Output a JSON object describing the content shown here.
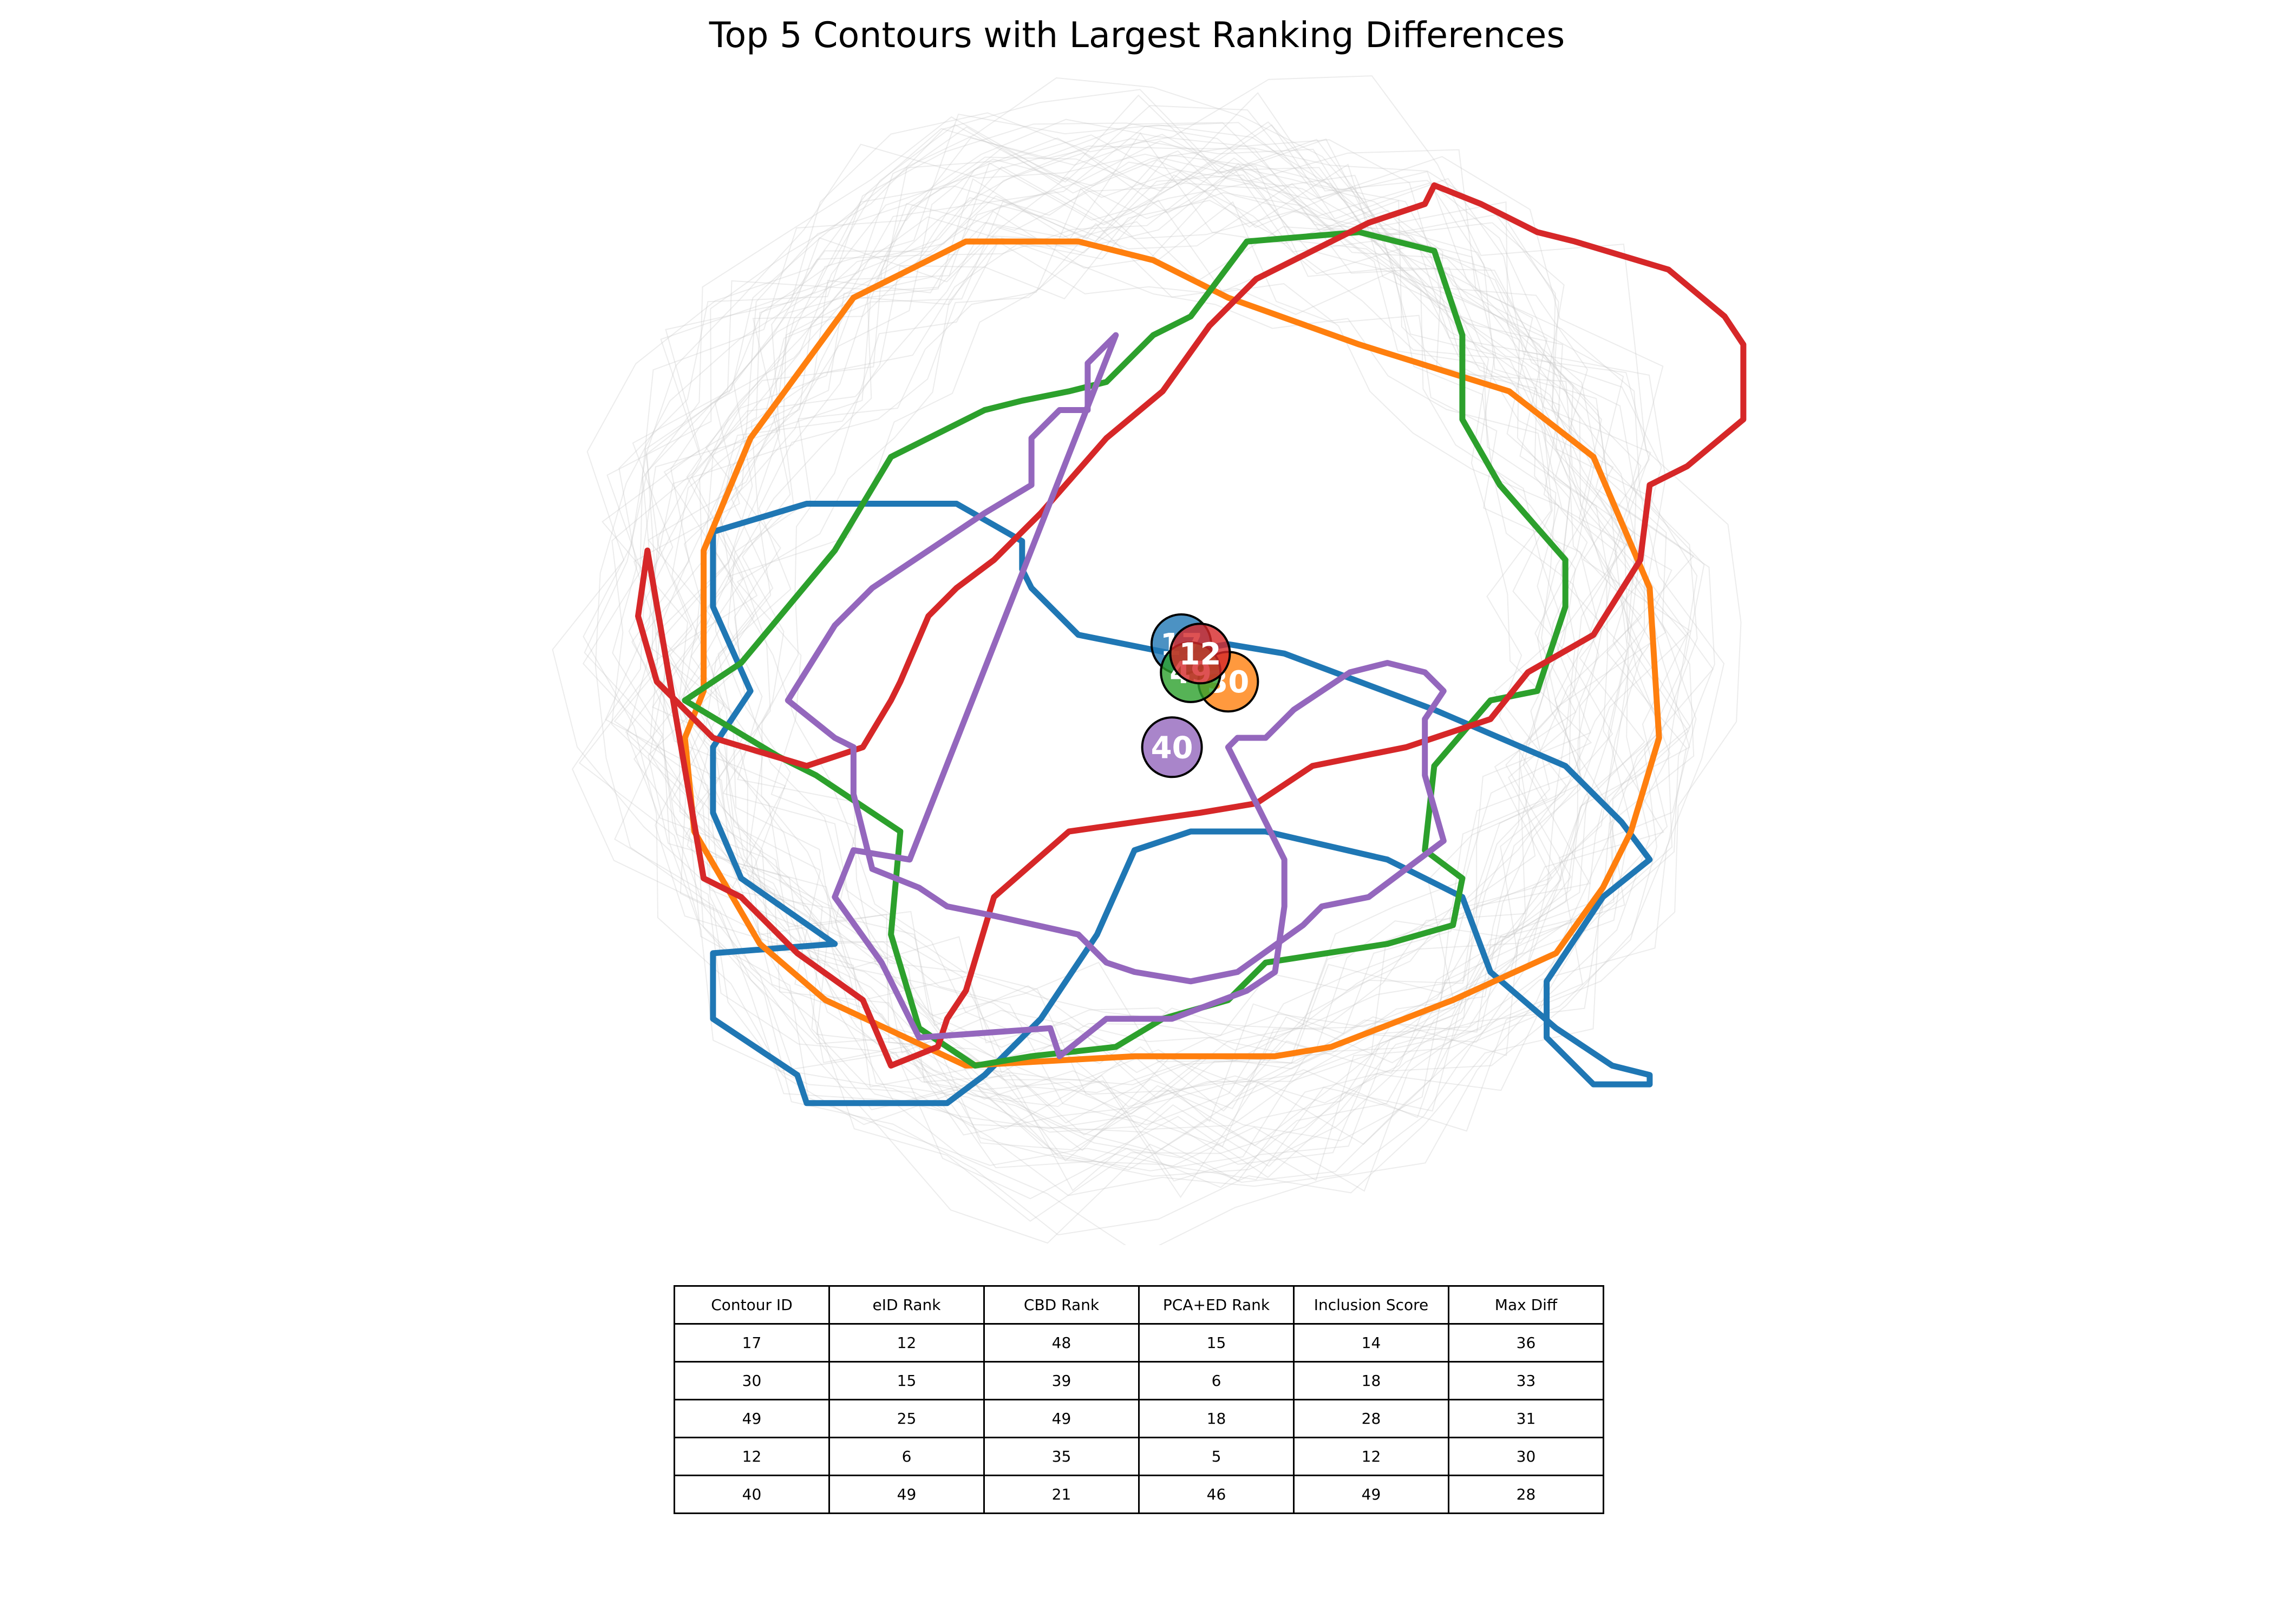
{
  "chart_data": {
    "type": "line",
    "title": "Top 5 Contours with Largest Ranking Differences",
    "background_contours": "faint gray ensemble contours",
    "highlighted_series": [
      {
        "contour_id": "17",
        "color": "#1f77b4",
        "x": [
          -0.34,
          -0.47,
          -0.47,
          -0.38,
          -0.37,
          -0.22,
          -0.18,
          -0.12,
          -0.06,
          -0.02,
          0.04,
          0.12,
          0.25,
          0.33,
          0.36,
          0.43,
          0.49,
          0.53,
          0.53,
          0.47,
          0.42,
          0.42,
          0.48,
          0.53,
          0.5,
          0.44,
          0.3,
          0.14,
          0.08,
          0.02,
          -0.08,
          -0.13,
          -0.14,
          -0.14,
          -0.21,
          -0.37,
          -0.47,
          -0.47,
          -0.43,
          -0.47,
          -0.47,
          -0.44
        ],
        "y": [
          -0.32,
          -0.33,
          -0.4,
          -0.46,
          -0.49,
          -0.49,
          -0.46,
          -0.4,
          -0.31,
          -0.22,
          -0.2,
          -0.2,
          -0.23,
          -0.27,
          -0.35,
          -0.41,
          -0.45,
          -0.46,
          -0.47,
          -0.47,
          -0.42,
          -0.36,
          -0.27,
          -0.23,
          -0.19,
          -0.13,
          -0.07,
          -0.01,
          0.0,
          -0.01,
          0.01,
          0.06,
          0.08,
          0.11,
          0.15,
          0.15,
          0.12,
          0.04,
          -0.05,
          -0.11,
          -0.18,
          -0.25
        ]
      },
      {
        "contour_id": "30",
        "color": "#ff7f0e",
        "x": [
          -0.48,
          -0.5,
          -0.49,
          -0.42,
          -0.35,
          -0.2,
          -0.02,
          0.13,
          0.19,
          0.32,
          0.43,
          0.48,
          0.51,
          0.54,
          0.53,
          0.47,
          0.38,
          0.22,
          0.08,
          0.0,
          -0.08,
          -0.2,
          -0.32,
          -0.43,
          -0.48
        ],
        "y": [
          -0.05,
          -0.1,
          -0.2,
          -0.32,
          -0.38,
          -0.45,
          -0.44,
          -0.44,
          -0.43,
          -0.38,
          -0.33,
          -0.26,
          -0.2,
          -0.1,
          0.06,
          0.2,
          0.27,
          0.32,
          0.37,
          0.41,
          0.43,
          0.43,
          0.37,
          0.22,
          0.1
        ]
      },
      {
        "contour_id": "49",
        "color": "#2ca02c",
        "x": [
          -0.5,
          -0.4,
          -0.36,
          -0.27,
          -0.28,
          -0.25,
          -0.19,
          -0.13,
          -0.04,
          0.01,
          0.08,
          0.12,
          0.25,
          0.32,
          0.33,
          0.29,
          0.3,
          0.36,
          0.41,
          0.44,
          0.44,
          0.37,
          0.33,
          0.33,
          0.3,
          0.22,
          0.1,
          0.04,
          0.0,
          -0.05,
          -0.09,
          -0.14,
          -0.18,
          -0.24,
          -0.28,
          -0.34,
          -0.44,
          -0.5
        ],
        "y": [
          -0.06,
          -0.12,
          -0.14,
          -0.2,
          -0.31,
          -0.41,
          -0.45,
          -0.44,
          -0.43,
          -0.4,
          -0.38,
          -0.34,
          -0.32,
          -0.3,
          -0.25,
          -0.22,
          -0.13,
          -0.06,
          -0.05,
          0.04,
          0.09,
          0.17,
          0.24,
          0.33,
          0.42,
          0.44,
          0.43,
          0.35,
          0.33,
          0.28,
          0.27,
          0.26,
          0.25,
          0.22,
          0.2,
          0.1,
          -0.02,
          -0.06
        ]
      },
      {
        "contour_id": "12",
        "color": "#d62728",
        "x": [
          -0.48,
          -0.44,
          -0.4,
          -0.38,
          -0.31,
          -0.28,
          -0.23,
          -0.22,
          -0.2,
          -0.17,
          -0.09,
          0.05,
          0.11,
          0.17,
          0.27,
          0.36,
          0.4,
          0.47,
          0.52,
          0.53,
          0.57,
          0.63,
          0.63,
          0.61,
          0.55,
          0.45,
          0.41,
          0.35,
          0.3,
          0.29,
          0.23,
          0.11,
          0.06,
          0.01,
          -0.05,
          -0.12,
          -0.17,
          -0.21,
          -0.24,
          -0.27,
          -0.28,
          -0.31,
          -0.37,
          -0.47,
          -0.53,
          -0.55,
          -0.54
        ],
        "y": [
          -0.25,
          -0.27,
          -0.31,
          -0.33,
          -0.38,
          -0.45,
          -0.43,
          -0.4,
          -0.37,
          -0.27,
          -0.2,
          -0.18,
          -0.17,
          -0.13,
          -0.11,
          -0.08,
          -0.03,
          0.01,
          0.09,
          0.17,
          0.19,
          0.24,
          0.32,
          0.35,
          0.4,
          0.43,
          0.44,
          0.47,
          0.49,
          0.47,
          0.45,
          0.39,
          0.34,
          0.27,
          0.22,
          0.14,
          0.09,
          0.06,
          0.03,
          -0.04,
          -0.06,
          -0.11,
          -0.13,
          -0.1,
          -0.04,
          0.03,
          0.1
        ]
      },
      {
        "contour_id": "40",
        "color": "#9467bd",
        "x": [
          -0.26,
          -0.32,
          -0.34,
          -0.29,
          -0.25,
          -0.11,
          -0.1,
          -0.05,
          0.02,
          0.1,
          0.13,
          0.14,
          0.14,
          0.11,
          0.08,
          0.09,
          0.12,
          0.15,
          0.21,
          0.25,
          0.29,
          0.31,
          0.29,
          0.29,
          0.31,
          0.23,
          0.18,
          0.16,
          0.09,
          0.04,
          -0.02,
          -0.05,
          -0.08,
          -0.17,
          -0.22,
          -0.25,
          -0.3,
          -0.32,
          -0.32,
          -0.34,
          -0.39,
          -0.34,
          -0.3,
          -0.18,
          -0.13,
          -0.13,
          -0.1,
          -0.07,
          -0.07,
          -0.04
        ],
        "y": [
          -0.23,
          -0.22,
          -0.27,
          -0.34,
          -0.42,
          -0.41,
          -0.44,
          -0.4,
          -0.4,
          -0.37,
          -0.35,
          -0.28,
          -0.23,
          -0.17,
          -0.11,
          -0.1,
          -0.1,
          -0.07,
          -0.03,
          -0.02,
          -0.03,
          -0.05,
          -0.08,
          -0.14,
          -0.21,
          -0.27,
          -0.28,
          -0.3,
          -0.35,
          -0.36,
          -0.35,
          -0.34,
          -0.31,
          -0.29,
          -0.28,
          -0.26,
          -0.24,
          -0.16,
          -0.11,
          -0.1,
          -0.06,
          0.02,
          0.06,
          0.14,
          0.17,
          0.22,
          0.25,
          0.25,
          0.3,
          0.33
        ]
      }
    ],
    "center_markers": [
      {
        "label": "17",
        "color": "#1f77b4",
        "x": 0.03,
        "y": 0.0
      },
      {
        "label": "30",
        "color": "#ff7f0e",
        "x": 0.08,
        "y": -0.04
      },
      {
        "label": "49",
        "color": "#2ca02c",
        "x": 0.04,
        "y": -0.03
      },
      {
        "label": "12",
        "color": "#d62728",
        "x": 0.05,
        "y": -0.01
      },
      {
        "label": "40",
        "color": "#9467bd",
        "x": 0.02,
        "y": -0.11
      }
    ],
    "table": {
      "columns": [
        "Contour ID",
        "eID Rank",
        "CBD Rank",
        "PCA+ED Rank",
        "Inclusion Score",
        "Max Diff"
      ],
      "rows": [
        [
          "17",
          "12",
          "48",
          "15",
          "14",
          "36"
        ],
        [
          "30",
          "15",
          "39",
          "6",
          "18",
          "33"
        ],
        [
          "49",
          "25",
          "49",
          "18",
          "28",
          "31"
        ],
        [
          "12",
          "6",
          "35",
          "5",
          "12",
          "30"
        ],
        [
          "40",
          "49",
          "21",
          "46",
          "49",
          "28"
        ]
      ]
    }
  }
}
